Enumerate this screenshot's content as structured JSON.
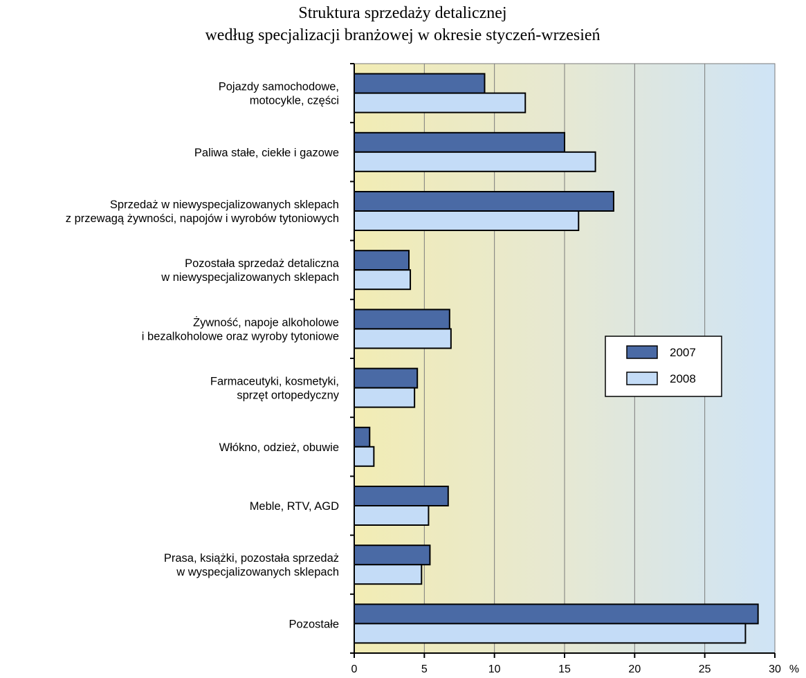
{
  "chart_data": {
    "type": "bar",
    "orientation": "horizontal",
    "title": [
      "Struktura sprzedaży detalicznej",
      "według specjalizacji branżowej w okresie styczeń-wrzesień"
    ],
    "categories": [
      [
        "Pojazdy samochodowe,",
        "motocykle, części"
      ],
      [
        "Paliwa stałe, ciekłe i gazowe"
      ],
      [
        "Sprzedaż w niewyspecjalizowanych sklepach",
        "z przewagą żywności, napojów i wyrobów tytoniowych"
      ],
      [
        "Pozostała sprzedaż detaliczna",
        "w niewyspecjalizowanych sklepach"
      ],
      [
        "Żywność, napoje alkoholowe",
        "i bezalkoholowe oraz wyroby tytoniowe"
      ],
      [
        "Farmaceutyki, kosmetyki,",
        "sprzęt ortopedyczny"
      ],
      [
        "Włókno, odzież, obuwie"
      ],
      [
        "Meble, RTV, AGD"
      ],
      [
        "Prasa, książki, pozostała sprzedaż",
        "w wyspecjalizowanych sklepach"
      ],
      [
        "Pozostałe"
      ]
    ],
    "series": [
      {
        "name": "2007",
        "color": "#4a6aa5",
        "values": [
          9.3,
          15.0,
          18.5,
          3.9,
          6.8,
          4.5,
          1.1,
          6.7,
          5.4,
          28.8
        ]
      },
      {
        "name": "2008",
        "color": "#c4dcf7",
        "values": [
          12.2,
          17.2,
          16.0,
          4.0,
          6.9,
          4.3,
          1.4,
          5.3,
          4.8,
          27.9
        ]
      }
    ],
    "xlim": [
      0,
      30
    ],
    "xticks": [
      "0",
      "5",
      "10",
      "15",
      "20",
      "25",
      "30"
    ],
    "xunit": "%",
    "grid": "vertical",
    "legend_position": "right"
  }
}
